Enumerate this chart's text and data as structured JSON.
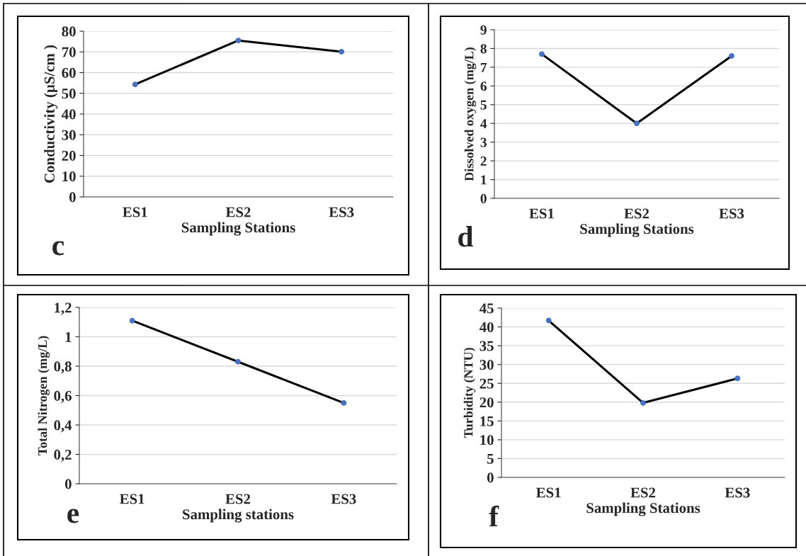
{
  "chart_data": [
    {
      "type": "line",
      "categories": [
        "ES1",
        "ES2",
        "ES3"
      ],
      "xlabel": "Sampling Stations",
      "ylabel": "Conductivity (µS/cm )",
      "annotations": [
        "c"
      ],
      "series": [
        {
          "color": "#000000",
          "values": [
            54.3,
            75.5,
            70.1
          ]
        }
      ],
      "ylim": [
        0,
        80
      ],
      "yticks": [
        0,
        10,
        20,
        30,
        40,
        50,
        60,
        70,
        80
      ],
      "grid": "y",
      "marker": "circle",
      "line_style": "solid"
    },
    {
      "type": "line",
      "categories": [
        "ES1",
        "ES2",
        "ES3"
      ],
      "xlabel": "Sampling Stations",
      "ylabel": "Dissolved oxygen (mg/L)",
      "annotations": [
        "d"
      ],
      "series": [
        {
          "color": "#000000",
          "values": [
            7.7,
            4.0,
            7.6
          ]
        }
      ],
      "ylim": [
        0,
        9
      ],
      "yticks": [
        0,
        1,
        2,
        3,
        4,
        5,
        6,
        7,
        8,
        9
      ],
      "grid": "y",
      "marker": "circle",
      "line_style": "solid"
    },
    {
      "type": "line",
      "categories": [
        "ES1",
        "ES2",
        "ES3"
      ],
      "xlabel": "Sampling stations",
      "ylabel": "Total Nitrogen (mg/L)",
      "annotations": [
        "e"
      ],
      "series": [
        {
          "color": "#000000",
          "values": [
            1.11,
            0.83,
            0.55
          ]
        }
      ],
      "ylim": [
        0,
        1.2
      ],
      "yticks": [
        0,
        {
          "value": 0.2,
          "label": "0,2"
        },
        {
          "value": 0.4,
          "label": "0,4"
        },
        {
          "value": 0.6,
          "label": "0,6"
        },
        {
          "value": 0.8,
          "label": "0,8"
        },
        1,
        {
          "value": 1.2,
          "label": "1,2"
        }
      ],
      "grid": "y",
      "marker": "circle",
      "line_style": "solid"
    },
    {
      "type": "line",
      "categories": [
        "ES1",
        "ES2",
        "ES3"
      ],
      "xlabel": "Sampling Stations",
      "ylabel": "Turbidity (NTU)",
      "annotations": [
        "f"
      ],
      "series": [
        {
          "color": "#000000",
          "values": [
            41.7,
            19.8,
            26.3
          ]
        }
      ],
      "ylim": [
        0,
        45
      ],
      "yticks": [
        0,
        5,
        10,
        15,
        20,
        25,
        30,
        35,
        40,
        45
      ],
      "grid": "y",
      "marker": "circle",
      "line_style": "solid"
    }
  ]
}
